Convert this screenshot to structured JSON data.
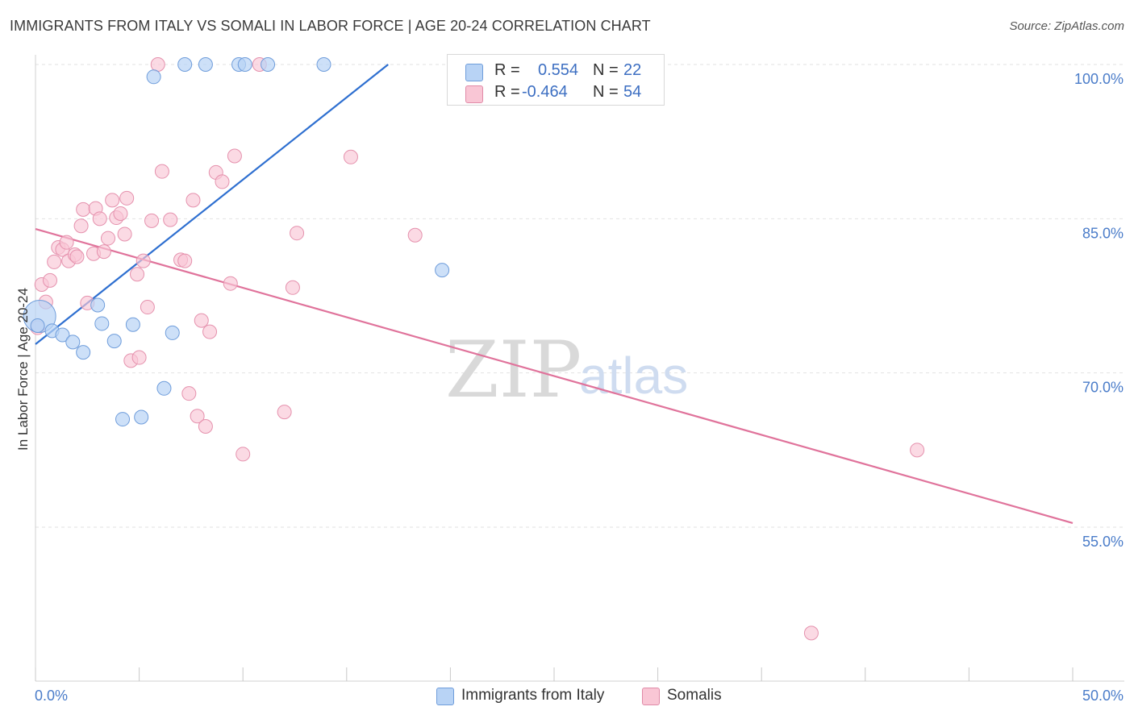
{
  "title": "IMMIGRANTS FROM ITALY VS SOMALI IN LABOR FORCE | AGE 20-24 CORRELATION CHART",
  "source": "Source: ZipAtlas.com",
  "watermark": {
    "zip": "ZIP",
    "atlas": "atlas"
  },
  "legend_top": {
    "rows": [
      {
        "r_label": "R =",
        "r_value": "0.554",
        "n_label": "N =",
        "n_value": "22",
        "color": "#b8d3f5",
        "border": "#6f9ddb"
      },
      {
        "r_label": "R =",
        "r_value": "-0.464",
        "n_label": "N =",
        "n_value": "54",
        "color": "#f9c6d5",
        "border": "#e08aa7"
      }
    ]
  },
  "legend_bottom": {
    "items": [
      {
        "label": "Immigrants from Italy",
        "color": "#b8d3f5",
        "border": "#6f9ddb"
      },
      {
        "label": "Somalis",
        "color": "#f9c6d5",
        "border": "#e08aa7"
      }
    ]
  },
  "chart_data": {
    "type": "scatter",
    "title": "IMMIGRANTS FROM ITALY VS SOMALI IN LABOR FORCE | AGE 20-24 CORRELATION CHART",
    "xlabel": "",
    "ylabel": "In Labor Force | Age 20-24",
    "xlim": [
      0,
      50
    ],
    "ylim": [
      40,
      101
    ],
    "x_ticks": [
      {
        "value": 0,
        "label": "0.0%"
      },
      {
        "value": 50,
        "label": "50.0%"
      }
    ],
    "y_ticks": [
      {
        "value": 100,
        "label": "100.0%"
      },
      {
        "value": 85,
        "label": "85.0%"
      },
      {
        "value": 70,
        "label": "70.0%"
      },
      {
        "value": 55,
        "label": "55.0%"
      }
    ],
    "grid": true,
    "colors": {
      "blue_fill": "#b8d3f5",
      "blue_stroke": "#6f9ddb",
      "blue_line": "#2e6fd0",
      "pink_fill": "#f9c6d5",
      "pink_stroke": "#e591ad",
      "pink_line": "#e0739b"
    },
    "series": [
      {
        "name": "Immigrants from Italy",
        "r": 0.554,
        "n": 22,
        "trend": [
          [
            0,
            72.8
          ],
          [
            17,
            100
          ]
        ],
        "points": [
          [
            0.2,
            75.5
          ],
          [
            0.8,
            74.1
          ],
          [
            1.3,
            73.7
          ],
          [
            1.8,
            73.0
          ],
          [
            2.3,
            72.0
          ],
          [
            3.0,
            76.6
          ],
          [
            3.2,
            74.8
          ],
          [
            3.8,
            73.1
          ],
          [
            4.2,
            65.5
          ],
          [
            4.7,
            74.7
          ],
          [
            5.1,
            65.7
          ],
          [
            5.7,
            98.8
          ],
          [
            6.2,
            68.5
          ],
          [
            6.6,
            73.9
          ],
          [
            7.2,
            100
          ],
          [
            8.2,
            100
          ],
          [
            9.8,
            100
          ],
          [
            10.1,
            100
          ],
          [
            11.2,
            100
          ],
          [
            13.9,
            100
          ],
          [
            19.6,
            80.0
          ],
          [
            0.1,
            74.6
          ]
        ]
      },
      {
        "name": "Somalis",
        "r": -0.464,
        "n": 54,
        "trend": [
          [
            0,
            84.0
          ],
          [
            50,
            55.4
          ]
        ],
        "points": [
          [
            0.1,
            74.4
          ],
          [
            0.3,
            78.6
          ],
          [
            0.5,
            76.9
          ],
          [
            0.7,
            79.0
          ],
          [
            0.9,
            80.8
          ],
          [
            1.1,
            82.2
          ],
          [
            1.3,
            82.0
          ],
          [
            1.5,
            82.7
          ],
          [
            1.6,
            80.9
          ],
          [
            1.9,
            81.5
          ],
          [
            2.0,
            81.3
          ],
          [
            2.2,
            84.3
          ],
          [
            2.3,
            85.9
          ],
          [
            2.5,
            76.8
          ],
          [
            2.8,
            81.6
          ],
          [
            2.9,
            86.0
          ],
          [
            3.1,
            85.0
          ],
          [
            3.3,
            81.8
          ],
          [
            3.5,
            83.1
          ],
          [
            3.7,
            86.8
          ],
          [
            3.9,
            85.1
          ],
          [
            4.1,
            85.5
          ],
          [
            4.3,
            83.5
          ],
          [
            4.4,
            87.0
          ],
          [
            4.6,
            71.2
          ],
          [
            4.9,
            79.6
          ],
          [
            5.0,
            71.5
          ],
          [
            5.2,
            80.9
          ],
          [
            5.4,
            76.4
          ],
          [
            5.6,
            84.8
          ],
          [
            5.9,
            100
          ],
          [
            6.1,
            89.6
          ],
          [
            6.5,
            84.9
          ],
          [
            7.0,
            81.0
          ],
          [
            7.2,
            80.9
          ],
          [
            7.4,
            68.0
          ],
          [
            7.6,
            86.8
          ],
          [
            7.8,
            65.8
          ],
          [
            8.0,
            75.1
          ],
          [
            8.2,
            64.8
          ],
          [
            8.4,
            74.0
          ],
          [
            8.7,
            89.5
          ],
          [
            9.0,
            88.6
          ],
          [
            9.4,
            78.7
          ],
          [
            9.6,
            91.1
          ],
          [
            10.0,
            62.1
          ],
          [
            10.8,
            100
          ],
          [
            12.0,
            66.2
          ],
          [
            12.4,
            78.3
          ],
          [
            12.6,
            83.6
          ],
          [
            15.2,
            91.0
          ],
          [
            18.3,
            83.4
          ],
          [
            37.4,
            44.7
          ],
          [
            42.5,
            62.5
          ]
        ]
      }
    ]
  }
}
